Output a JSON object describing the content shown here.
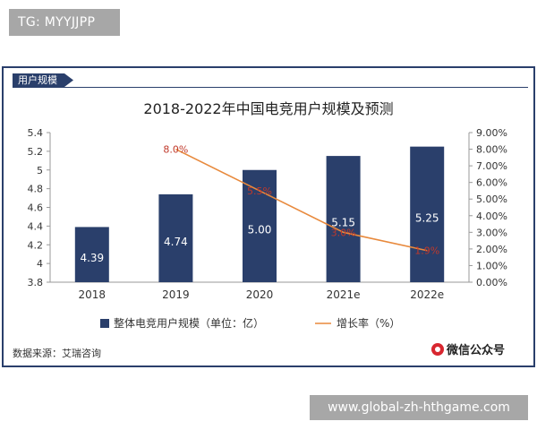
{
  "watermark_top": "TG: MYYJJPP",
  "watermark_bottom": "www.global-zh-hthgame.com",
  "section_tab": "用户规模",
  "source": "数据来源：艾瑞咨询",
  "logo_text": "微信公众号",
  "colors": {
    "bar": "#2a3f6b",
    "line": "#e8893c",
    "line_label": "#c0392b",
    "frame": "#2a3f6b"
  },
  "chart_data": {
    "type": "bar",
    "title": "2018-2022年中国电竞用户规模及预测",
    "categories": [
      "2018",
      "2019",
      "2020",
      "2021e",
      "2022e"
    ],
    "series": [
      {
        "name": "整体电竞用户规模（单位：亿）",
        "type": "bar",
        "axis": "left",
        "values": [
          4.39,
          4.74,
          5.0,
          5.15,
          5.25
        ],
        "labels": [
          "4.39",
          "4.74",
          "5.00",
          "5.15",
          "5.25"
        ]
      },
      {
        "name": "增长率（%）",
        "type": "line",
        "axis": "right",
        "values": [
          null,
          8.0,
          5.5,
          3.0,
          1.9
        ],
        "labels": [
          "",
          "8.0%",
          "5.5%",
          "3.0%",
          "1.9%"
        ]
      }
    ],
    "y_left": {
      "min": 3.8,
      "max": 5.4,
      "ticks": [
        "3.8",
        "4",
        "4.2",
        "4.4",
        "4.6",
        "4.8",
        "5",
        "5.2",
        "5.4"
      ]
    },
    "y_right": {
      "min": 0,
      "max": 9,
      "ticks": [
        "0.00%",
        "1.00%",
        "2.00%",
        "3.00%",
        "4.00%",
        "5.00%",
        "6.00%",
        "7.00%",
        "8.00%",
        "9.00%"
      ]
    },
    "legend_position": "bottom",
    "grid": false
  }
}
